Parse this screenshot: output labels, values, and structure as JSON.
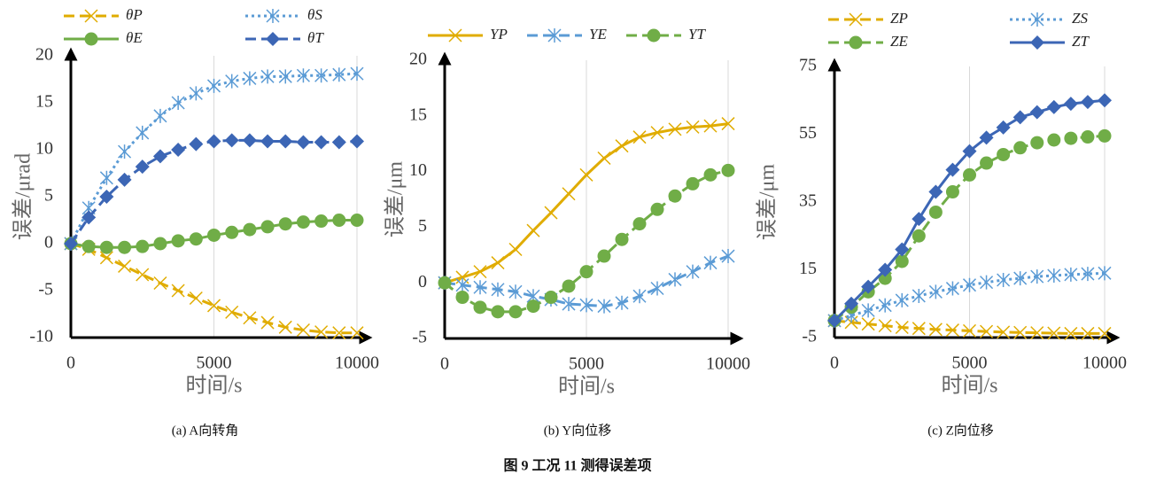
{
  "figure_title": "图 9   工况 11 测得误差项",
  "chart_data": [
    {
      "type": "line",
      "caption": "(a) A向转角",
      "x_label": "时间/s",
      "y_label": "误差/μrad",
      "x": [
        0,
        625,
        1250,
        1875,
        2500,
        3125,
        3750,
        4375,
        5000,
        5625,
        6250,
        6875,
        7500,
        8125,
        8750,
        9375,
        10000
      ],
      "xlim": [
        0,
        10000
      ],
      "xticks": [
        0,
        5000,
        10000
      ],
      "ylim": [
        -10,
        20
      ],
      "yticks": [
        -10,
        -5,
        0,
        5,
        10,
        15,
        20
      ],
      "grid": "x",
      "series": [
        {
          "name": "θP",
          "color": "#e0ac00",
          "dash": "dashed",
          "marker": "x",
          "values": [
            0,
            -0.6,
            -1.5,
            -2.4,
            -3.3,
            -4.2,
            -5.0,
            -5.8,
            -6.6,
            -7.3,
            -7.9,
            -8.4,
            -8.9,
            -9.2,
            -9.4,
            -9.5,
            -9.5
          ]
        },
        {
          "name": "θS",
          "color": "#5b9bd5",
          "dash": "dotted",
          "marker": "asterisk",
          "values": [
            0,
            3.8,
            7.0,
            9.8,
            11.8,
            13.6,
            15.0,
            16.0,
            16.8,
            17.3,
            17.6,
            17.8,
            17.8,
            17.9,
            17.9,
            18.0,
            18.1
          ]
        },
        {
          "name": "θE",
          "color": "#70ad47",
          "dash": "solid",
          "marker": "circle",
          "values": [
            0,
            -0.3,
            -0.4,
            -0.4,
            -0.3,
            0,
            0.3,
            0.5,
            0.9,
            1.2,
            1.5,
            1.8,
            2.1,
            2.3,
            2.4,
            2.5,
            2.5
          ]
        },
        {
          "name": "θT",
          "color": "#3c66b5",
          "dash": "dashed",
          "marker": "diamond",
          "values": [
            0,
            2.8,
            5.0,
            6.8,
            8.2,
            9.3,
            10.0,
            10.6,
            10.9,
            11.0,
            11.0,
            10.9,
            10.9,
            10.8,
            10.8,
            10.8,
            10.9
          ]
        }
      ]
    },
    {
      "type": "line",
      "caption": "(b) Y向位移",
      "x_label": "时间/s",
      "y_label": "误差/μm",
      "x": [
        0,
        625,
        1250,
        1875,
        2500,
        3125,
        3750,
        4375,
        5000,
        5625,
        6250,
        6875,
        7500,
        8125,
        8750,
        9375,
        10000
      ],
      "xlim": [
        0,
        10000
      ],
      "xticks": [
        0,
        5000,
        10000
      ],
      "ylim": [
        -5,
        20
      ],
      "yticks": [
        -5,
        0,
        5,
        10,
        15,
        20
      ],
      "grid": "x",
      "series": [
        {
          "name": "YP",
          "color": "#e0ac00",
          "dash": "solid",
          "marker": "x",
          "values": [
            0,
            0.5,
            1.0,
            1.8,
            3.0,
            4.7,
            6.3,
            8.0,
            9.7,
            11.2,
            12.3,
            13.1,
            13.5,
            13.8,
            14.0,
            14.1,
            14.3
          ]
        },
        {
          "name": "YE",
          "color": "#5b9bd5",
          "dash": "dashed",
          "marker": "asterisk",
          "values": [
            0,
            -0.2,
            -0.4,
            -0.6,
            -0.8,
            -1.2,
            -1.5,
            -1.9,
            -2.0,
            -2.1,
            -1.8,
            -1.2,
            -0.5,
            0.3,
            1.0,
            1.8,
            2.4
          ]
        },
        {
          "name": "YT",
          "color": "#70ad47",
          "dash": "dashed",
          "marker": "circle",
          "values": [
            0,
            -1.3,
            -2.2,
            -2.6,
            -2.6,
            -2.1,
            -1.3,
            -0.3,
            1.0,
            2.4,
            3.9,
            5.3,
            6.6,
            7.8,
            8.9,
            9.7,
            10.1
          ]
        }
      ]
    },
    {
      "type": "line",
      "caption": "(c) Z向位移",
      "x_label": "时间/s",
      "y_label": "误差/μm",
      "x": [
        0,
        625,
        1250,
        1875,
        2500,
        3125,
        3750,
        4375,
        5000,
        5625,
        6250,
        6875,
        7500,
        8125,
        8750,
        9375,
        10000
      ],
      "xlim": [
        0,
        10000
      ],
      "xticks": [
        0,
        5000,
        10000
      ],
      "ylim": [
        -5,
        75
      ],
      "yticks": [
        -5,
        15,
        35,
        55,
        75
      ],
      "grid": "x",
      "series": [
        {
          "name": "ZP",
          "color": "#e0ac00",
          "dash": "dashed",
          "marker": "x",
          "values": [
            0,
            -0.5,
            -1,
            -1.5,
            -2,
            -2.3,
            -2.6,
            -2.8,
            -3,
            -3.2,
            -3.4,
            -3.5,
            -3.6,
            -3.7,
            -3.8,
            -3.8,
            -3.8
          ]
        },
        {
          "name": "ZS",
          "color": "#5b9bd5",
          "dash": "dotted",
          "marker": "asterisk",
          "values": [
            0,
            1.5,
            3.0,
            4.5,
            6.0,
            7.3,
            8.5,
            9.5,
            10.5,
            11.3,
            12,
            12.5,
            13,
            13.3,
            13.6,
            13.8,
            14
          ]
        },
        {
          "name": "ZE",
          "color": "#70ad47",
          "dash": "dashed",
          "marker": "circle",
          "values": [
            0,
            4,
            8.5,
            12.5,
            17.5,
            25,
            32,
            38,
            43,
            46.5,
            49,
            51,
            52.5,
            53.3,
            53.8,
            54.2,
            54.5
          ]
        },
        {
          "name": "ZT",
          "color": "#3c66b5",
          "dash": "solid",
          "marker": "diamond",
          "values": [
            0,
            5,
            10,
            15,
            21,
            30,
            38,
            44.5,
            50,
            54,
            57,
            60,
            61.5,
            63,
            64,
            64.5,
            65
          ]
        }
      ]
    }
  ]
}
